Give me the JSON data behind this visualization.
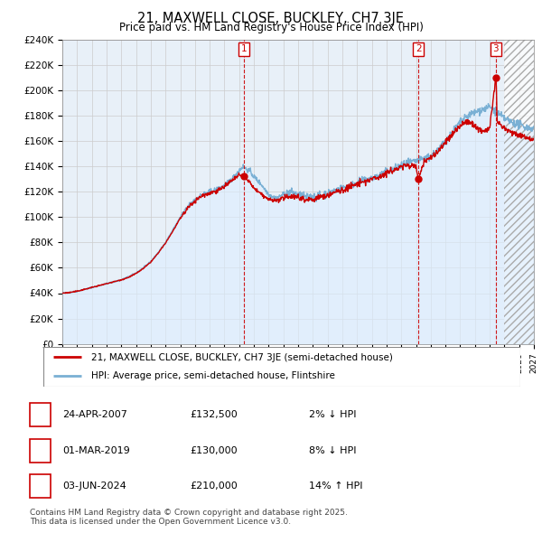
{
  "title": "21, MAXWELL CLOSE, BUCKLEY, CH7 3JE",
  "subtitle": "Price paid vs. HM Land Registry's House Price Index (HPI)",
  "xlim": [
    1995,
    2027
  ],
  "ylim": [
    0,
    240000
  ],
  "yticks": [
    0,
    20000,
    40000,
    60000,
    80000,
    100000,
    120000,
    140000,
    160000,
    180000,
    200000,
    220000,
    240000
  ],
  "ytick_labels": [
    "£0",
    "£20K",
    "£40K",
    "£60K",
    "£80K",
    "£100K",
    "£120K",
    "£140K",
    "£160K",
    "£180K",
    "£200K",
    "£220K",
    "£240K"
  ],
  "sale_events": [
    {
      "num": 1,
      "year": 2007.32,
      "price": 132500,
      "date": "24-APR-2007",
      "pct": "2%",
      "dir": "↓"
    },
    {
      "num": 2,
      "year": 2019.17,
      "price": 130000,
      "date": "01-MAR-2019",
      "pct": "8%",
      "dir": "↓"
    },
    {
      "num": 3,
      "year": 2024.42,
      "price": 210000,
      "date": "03-JUN-2024",
      "pct": "14%",
      "dir": "↑"
    }
  ],
  "legend_line1": "21, MAXWELL CLOSE, BUCKLEY, CH7 3JE (semi-detached house)",
  "legend_line2": "HPI: Average price, semi-detached house, Flintshire",
  "footnote": "Contains HM Land Registry data © Crown copyright and database right 2025.\nThis data is licensed under the Open Government Licence v3.0.",
  "line_red": "#cc0000",
  "line_blue": "#7ab0d4",
  "fill_blue": "#ddeeff",
  "bg_color": "#ffffff",
  "grid_color": "#cccccc",
  "chart_bg": "#e8f0f8"
}
